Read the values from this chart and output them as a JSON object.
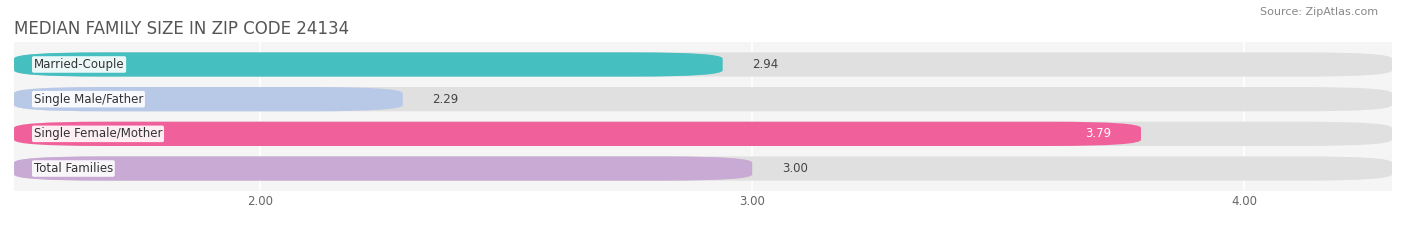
{
  "title": "MEDIAN FAMILY SIZE IN ZIP CODE 24134",
  "source": "Source: ZipAtlas.com",
  "categories": [
    "Married-Couple",
    "Single Male/Father",
    "Single Female/Mother",
    "Total Families"
  ],
  "values": [
    2.94,
    2.29,
    3.79,
    3.0
  ],
  "bar_colors": [
    "#45bfbf",
    "#b8c9e8",
    "#f0609a",
    "#c8aad4"
  ],
  "background_color": "#f5f5f5",
  "bar_bg_color": "#e8e8e8",
  "xlim_data": [
    1.5,
    4.3
  ],
  "xlim_display": [
    1.5,
    4.3
  ],
  "xticks": [
    2.0,
    3.0,
    4.0
  ],
  "xtick_labels": [
    "2.00",
    "3.00",
    "4.00"
  ],
  "label_fontsize": 8.5,
  "title_fontsize": 12,
  "source_fontsize": 8,
  "value_fontsize": 8.5,
  "bar_height": 0.7,
  "bar_gap": 0.25,
  "value_colors": [
    "#444444",
    "#444444",
    "#ffffff",
    "#444444"
  ]
}
